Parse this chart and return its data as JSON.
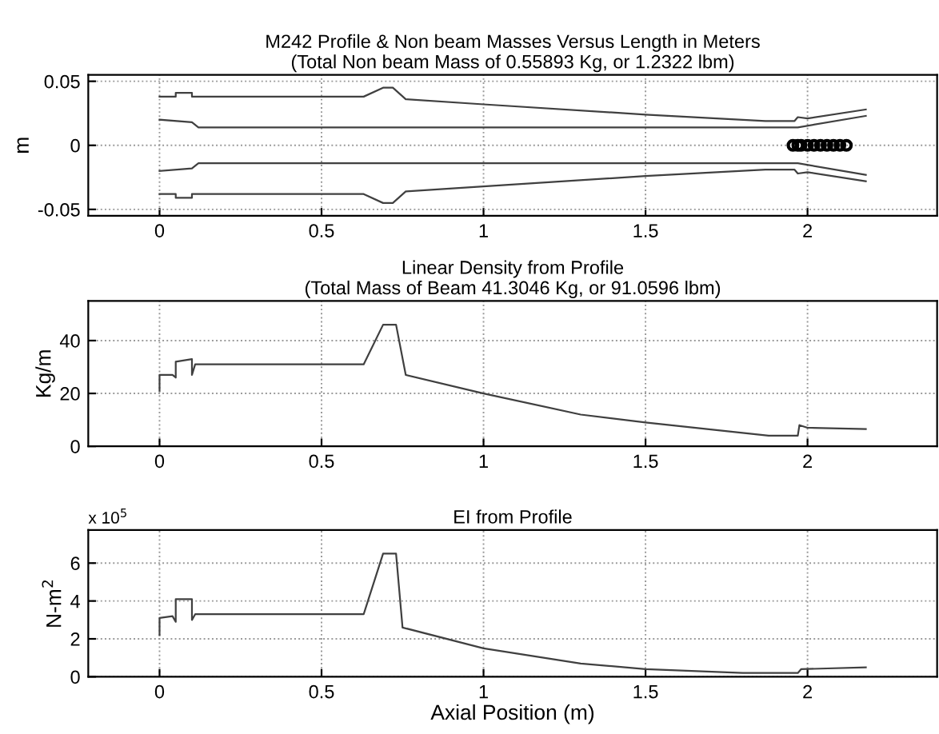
{
  "chart_data": [
    {
      "type": "line",
      "title": "M242 Profile & Non beam Masses Versus Length in Meters\n(Total Non beam Mass of 0.55893 Kg, or 1.2322 lbm)",
      "ylabel": "m",
      "xlim": [
        -0.22,
        2.4
      ],
      "xticks": [
        0,
        0.5,
        1,
        1.5,
        2
      ],
      "ylim": [
        -0.055,
        0.055
      ],
      "yticks": [
        -0.05,
        0,
        0.05
      ],
      "grid": true,
      "series": [
        {
          "color": "#404040",
          "x": [
            0,
            0.01,
            0.05,
            0.05,
            0.1,
            0.1,
            0.63,
            0.69,
            0.72,
            0.76,
            1.0,
            1.5,
            1.87,
            1.96,
            1.97,
            2.0,
            2.18
          ],
          "values": [
            0.038,
            0.038,
            0.038,
            0.041,
            0.041,
            0.038,
            0.038,
            0.045,
            0.045,
            0.036,
            0.032,
            0.024,
            0.019,
            0.019,
            0.022,
            0.021,
            0.028
          ]
        },
        {
          "color": "#404040",
          "x": [
            0,
            0.1,
            0.12,
            1.97,
            2.18
          ],
          "values": [
            0.02,
            0.018,
            0.014,
            0.014,
            0.023
          ]
        },
        {
          "color": "#404040",
          "x": [
            0,
            0.1,
            0.12,
            1.97,
            2.18
          ],
          "values": [
            -0.02,
            -0.018,
            -0.014,
            -0.014,
            -0.023
          ]
        },
        {
          "color": "#404040",
          "x": [
            0,
            0.01,
            0.05,
            0.05,
            0.1,
            0.1,
            0.63,
            0.69,
            0.72,
            0.76,
            1.0,
            1.5,
            1.87,
            1.96,
            1.97,
            2.0,
            2.18
          ],
          "values": [
            -0.038,
            -0.038,
            -0.038,
            -0.041,
            -0.041,
            -0.038,
            -0.038,
            -0.045,
            -0.045,
            -0.036,
            -0.032,
            -0.024,
            -0.019,
            -0.019,
            -0.022,
            -0.021,
            -0.028
          ]
        },
        {
          "type": "scatter",
          "marker": "circle",
          "color": "#000000",
          "x": [
            1.955,
            1.97,
            1.98,
            2.0,
            2.02,
            2.04,
            2.06,
            2.08,
            2.1,
            2.12
          ],
          "values": [
            0,
            0,
            0,
            0,
            0,
            0,
            0,
            0,
            0,
            0
          ]
        }
      ]
    },
    {
      "type": "line",
      "title": "Linear Density from Profile\n(Total Mass of Beam 41.3046 Kg, or 91.0596 lbm)",
      "ylabel": "Kg/m",
      "xlim": [
        -0.22,
        2.4
      ],
      "xticks": [
        0,
        0.5,
        1,
        1.5,
        2
      ],
      "ylim": [
        0,
        55
      ],
      "yticks": [
        0,
        20,
        40
      ],
      "grid": true,
      "series": [
        {
          "color": "#404040",
          "x": [
            0,
            0.0,
            0.04,
            0.05,
            0.05,
            0.1,
            0.1,
            0.11,
            0.63,
            0.69,
            0.73,
            0.76,
            1.0,
            1.3,
            1.5,
            1.88,
            1.97,
            1.975,
            2.0,
            2.18
          ],
          "values": [
            21,
            27,
            27,
            26,
            32,
            33,
            27,
            31,
            31,
            46,
            46,
            27,
            20,
            12,
            9,
            4,
            4,
            8,
            7,
            6.5
          ]
        }
      ]
    },
    {
      "type": "line",
      "title": "EI from Profile",
      "ylabel": "N-m$^{2}$",
      "xlabel": "Axial Position (m)",
      "annotations": [
        "x 10$^{5}$"
      ],
      "xlim": [
        -0.22,
        2.4
      ],
      "xticks": [
        0,
        0.5,
        1,
        1.5,
        2
      ],
      "ylim": [
        0,
        7.75
      ],
      "yticks": [
        0,
        2,
        4,
        6
      ],
      "grid": true,
      "series": [
        {
          "color": "#404040",
          "x": [
            0,
            0.0,
            0.04,
            0.05,
            0.05,
            0.1,
            0.1,
            0.11,
            0.63,
            0.69,
            0.73,
            0.75,
            1.0,
            1.3,
            1.5,
            1.8,
            1.97,
            1.98,
            2.18
          ],
          "values": [
            2.2,
            3.1,
            3.2,
            2.9,
            4.1,
            4.1,
            3.0,
            3.3,
            3.3,
            6.5,
            6.5,
            2.6,
            1.5,
            0.7,
            0.4,
            0.2,
            0.2,
            0.4,
            0.5
          ]
        }
      ]
    }
  ]
}
